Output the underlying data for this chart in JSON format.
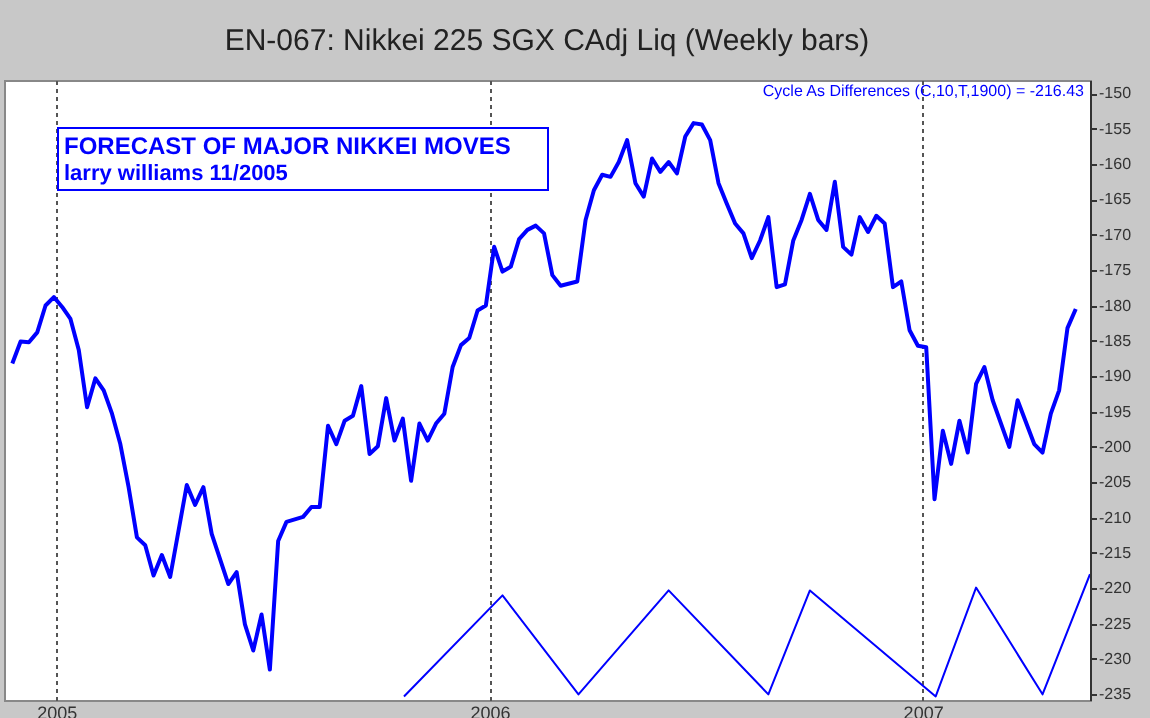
{
  "chart_data": {
    "type": "line",
    "title": "EN-067: Nikkei 225 SGX CAdj Liq (Weekly bars)",
    "annotations": [
      "FORECAST OF MAJOR NIKKEI MOVES",
      "larry williams 11/2005",
      "Cycle As Differences (C,10,T,1900) = -216.43"
    ],
    "xlim": [
      "2004-11-18",
      "2007-05-22"
    ],
    "xticks": [
      {
        "value": "2005-01-01",
        "label": "2005"
      },
      {
        "value": "2006-01-01",
        "label": "2006"
      },
      {
        "value": "2007-01-01",
        "label": "2007"
      }
    ],
    "ylim": [
      -235.8,
      -148.1
    ],
    "yticks": [
      -150,
      -155,
      -160,
      -165,
      -170,
      -175,
      -180,
      -185,
      -190,
      -195,
      -200,
      -205,
      -210,
      -215,
      -220,
      -225,
      -230,
      -235
    ],
    "grid": "x",
    "line_style": "solid",
    "marker": "none",
    "series": [
      {
        "color": "#0000ff",
        "x": [
          "2004-11-25",
          "2004-12-02",
          "2004-12-09",
          "2004-12-16",
          "2004-12-23",
          "2004-12-30",
          "2005-01-06",
          "2005-01-13",
          "2005-01-20",
          "2005-01-27",
          "2005-02-03",
          "2005-02-10",
          "2005-02-17",
          "2005-02-24",
          "2005-03-03",
          "2005-03-10",
          "2005-03-17",
          "2005-03-24",
          "2005-03-31",
          "2005-04-07",
          "2005-04-21",
          "2005-04-28",
          "2005-05-05",
          "2005-05-12",
          "2005-05-26",
          "2005-06-02",
          "2005-06-09",
          "2005-06-16",
          "2005-06-23",
          "2005-06-30",
          "2005-07-07",
          "2005-07-14",
          "2005-07-28",
          "2005-08-04",
          "2005-08-11",
          "2005-08-18",
          "2005-08-25",
          "2005-09-01",
          "2005-09-08",
          "2005-09-15",
          "2005-09-22",
          "2005-09-29",
          "2005-10-06",
          "2005-10-13",
          "2005-10-20",
          "2005-10-27",
          "2005-11-03",
          "2005-11-10",
          "2005-11-17",
          "2005-11-24",
          "2005-12-01",
          "2005-12-08",
          "2005-12-15",
          "2005-12-22",
          "2005-12-29",
          "2006-01-05",
          "2006-01-12",
          "2006-01-19",
          "2006-01-26",
          "2006-02-02",
          "2006-02-09",
          "2006-02-16",
          "2006-02-23",
          "2006-03-02",
          "2006-03-16",
          "2006-03-23",
          "2006-03-30",
          "2006-04-06",
          "2006-04-13",
          "2006-04-20",
          "2006-04-27",
          "2006-05-04",
          "2006-05-11",
          "2006-05-18",
          "2006-05-25",
          "2006-06-01",
          "2006-06-08",
          "2006-06-15",
          "2006-06-22",
          "2006-06-29",
          "2006-07-06",
          "2006-07-13",
          "2006-07-20",
          "2006-07-27",
          "2006-08-03",
          "2006-08-10",
          "2006-08-17",
          "2006-08-24",
          "2006-08-31",
          "2006-09-07",
          "2006-09-14",
          "2006-09-21",
          "2006-09-28",
          "2006-10-05",
          "2006-10-12",
          "2006-10-19",
          "2006-10-26",
          "2006-11-02",
          "2006-11-09",
          "2006-11-16",
          "2006-11-23",
          "2006-11-30",
          "2006-12-07",
          "2006-12-14",
          "2006-12-21",
          "2006-12-28",
          "2007-01-04",
          "2007-01-11",
          "2007-01-18",
          "2007-01-25",
          "2007-02-01",
          "2007-02-08",
          "2007-02-15",
          "2007-02-22",
          "2007-03-01",
          "2007-03-15",
          "2007-03-22",
          "2007-04-05",
          "2007-04-12",
          "2007-04-19",
          "2007-04-26",
          "2007-05-03",
          "2007-05-10"
        ],
        "values": [
          -188.2,
          -185.1,
          -185.2,
          -183.8,
          -180.0,
          -178.8,
          -180.2,
          -181.9,
          -186.3,
          -194.4,
          -190.3,
          -192.0,
          -195.3,
          -199.6,
          -205.7,
          -212.8,
          -213.9,
          -218.2,
          -215.3,
          -218.4,
          -205.4,
          -208.2,
          -205.7,
          -212.3,
          -219.4,
          -217.7,
          -225.1,
          -228.8,
          -223.7,
          -231.5,
          -213.3,
          -210.6,
          -209.9,
          -208.5,
          -208.5,
          -197.0,
          -199.6,
          -196.3,
          -195.6,
          -191.4,
          -201.0,
          -199.9,
          -193.1,
          -199.1,
          -196.0,
          -204.8,
          -196.7,
          -199.1,
          -196.7,
          -195.3,
          -188.7,
          -185.6,
          -184.6,
          -180.7,
          -180.0,
          -171.7,
          -175.2,
          -174.5,
          -170.6,
          -169.3,
          -168.7,
          -169.8,
          -175.7,
          -177.2,
          -176.6,
          -167.9,
          -163.7,
          -161.5,
          -161.8,
          -159.7,
          -156.6,
          -162.7,
          -164.6,
          -159.2,
          -161.1,
          -159.7,
          -161.3,
          -156.1,
          -154.2,
          -154.4,
          -156.6,
          -162.7,
          -165.6,
          -168.4,
          -169.8,
          -173.3,
          -170.8,
          -167.5,
          -177.4,
          -177.0,
          -170.8,
          -167.9,
          -164.2,
          -167.9,
          -169.3,
          -162.5,
          -171.7,
          -172.8,
          -167.5,
          -169.6,
          -167.3,
          -168.4,
          -177.4,
          -176.6,
          -183.5,
          -185.7,
          -185.9,
          -207.4,
          -197.7,
          -202.4,
          -196.3,
          -200.8,
          -191.1,
          -188.7,
          -193.4,
          -200.0,
          -193.4,
          -199.6,
          -200.8,
          -195.3,
          -192.0,
          -183.2,
          -180.5
        ]
      },
      {
        "color": "#0000ff",
        "x": [
          "2005-10-21",
          "2006-01-12",
          "2006-03-17",
          "2006-06-01",
          "2006-08-24",
          "2006-09-28",
          "2007-01-12",
          "2007-02-15",
          "2007-04-12",
          "2007-05-22"
        ],
        "values": [
          -235.3,
          -221.0,
          -235.0,
          -220.3,
          -235.0,
          -220.3,
          -235.3,
          -219.9,
          -235.0,
          -218.0
        ]
      }
    ]
  }
}
